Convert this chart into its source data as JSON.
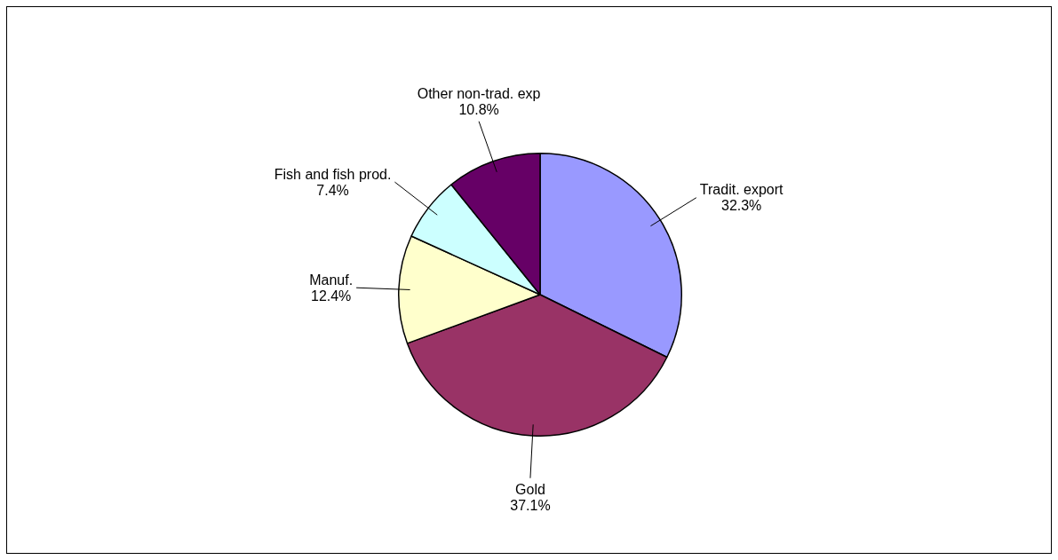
{
  "chart_data": {
    "type": "pie",
    "categories": [
      "Tradit. export",
      "Gold",
      "Manuf.",
      "Fish and fish prod.",
      "Other non-trad. exp"
    ],
    "values": [
      32.3,
      37.1,
      12.4,
      7.4,
      10.8
    ],
    "value_labels": [
      "32.3%",
      "37.1%",
      "12.4%",
      "7.4%",
      "10.8%"
    ],
    "colors": [
      "#9999ff",
      "#993366",
      "#ffffcc",
      "#ccffff",
      "#660066"
    ],
    "legend": false
  }
}
